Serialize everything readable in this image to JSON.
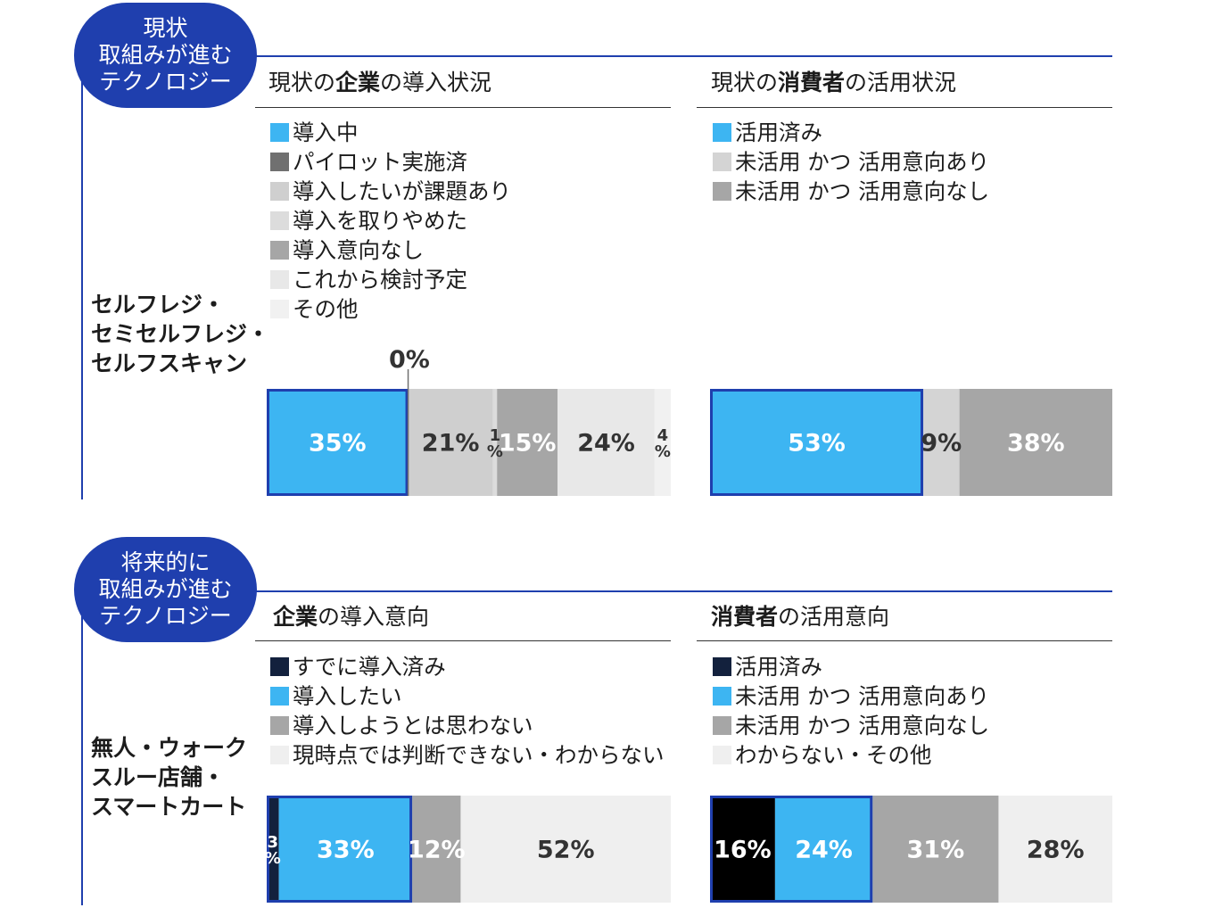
{
  "sections": [
    {
      "badge": [
        "現状",
        "取組みが進む",
        "テクノロジー"
      ],
      "row_label": [
        "セルフレジ・",
        "セミセルフレジ・",
        "セルフスキャン"
      ],
      "panels": [
        {
          "title_parts": [
            {
              "text": "現状の",
              "bold": false
            },
            {
              "text": "企業",
              "bold": true
            },
            {
              "text": "の導入状況",
              "bold": false
            }
          ],
          "legend": [
            {
              "label": "導入中",
              "color": "#3db5f2"
            },
            {
              "label": "パイロット実施済",
              "color": "#707070"
            },
            {
              "label": "導入したいが課題あり",
              "color": "#cfcfcf"
            },
            {
              "label": "導入を取りやめた",
              "color": "#dcdcdc"
            },
            {
              "label": "導入意向なし",
              "color": "#a6a6a6"
            },
            {
              "label": "これから検討予定",
              "color": "#e8e8e8"
            },
            {
              "label": "その他",
              "color": "#f1f1f1"
            }
          ]
        },
        {
          "title_parts": [
            {
              "text": "現状の",
              "bold": false
            },
            {
              "text": "消費者",
              "bold": true
            },
            {
              "text": "の活用状況",
              "bold": false
            }
          ],
          "legend": [
            {
              "label": "活用済み",
              "color": "#3db5f2"
            },
            {
              "label": "未活用 かつ 活用意向あり",
              "color": "#d4d4d4"
            },
            {
              "label": "未活用 かつ 活用意向なし",
              "color": "#a6a6a6"
            }
          ]
        }
      ]
    },
    {
      "badge": [
        "将来的に",
        "取組みが進む",
        "テクノロジー"
      ],
      "row_label": [
        "無人・ウォーク",
        "スルー店舗・",
        "スマートカート"
      ],
      "panels": [
        {
          "title_parts": [
            {
              "text": "企業",
              "bold": true
            },
            {
              "text": "の導入意向",
              "bold": false
            }
          ],
          "legend": [
            {
              "label": "すでに導入済み",
              "color": "#13213d"
            },
            {
              "label": "導入したい",
              "color": "#3db5f2"
            },
            {
              "label": "導入しようとは思わない",
              "color": "#a6a6a6"
            },
            {
              "label": "現時点では判断できない・わからない",
              "color": "#efefef"
            }
          ]
        },
        {
          "title_parts": [
            {
              "text": "消費者",
              "bold": true
            },
            {
              "text": "の活用意向",
              "bold": false
            }
          ],
          "legend": [
            {
              "label": "活用済み",
              "color": "#13213d"
            },
            {
              "label": "未活用 かつ 活用意向あり",
              "color": "#3db5f2"
            },
            {
              "label": "未活用 かつ 活用意向なし",
              "color": "#a6a6a6"
            },
            {
              "label": "わからない・その他",
              "color": "#efefef"
            }
          ]
        }
      ]
    }
  ],
  "chart_data": [
    {
      "type": "bar",
      "stacked": "100%",
      "title": "現状の企業の導入状況",
      "categories": [
        "セルフレジ・セミセルフレジ・セルフスキャン"
      ],
      "series": [
        {
          "name": "導入中",
          "values": [
            35
          ],
          "label": "35%",
          "color": "#3db5f2",
          "text_color": "#ffffff",
          "highlight": true
        },
        {
          "name": "パイロット実施済",
          "values": [
            0
          ],
          "label": "0%",
          "color": "#707070",
          "text_color": "#333333"
        },
        {
          "name": "導入したいが課題あり",
          "values": [
            21
          ],
          "label": "21%",
          "color": "#cfcfcf",
          "text_color": "#333333"
        },
        {
          "name": "導入を取りやめた",
          "values": [
            1
          ],
          "label": "1%",
          "color": "#dcdcdc",
          "text_color": "#333333"
        },
        {
          "name": "導入意向なし",
          "values": [
            15
          ],
          "label": "15%",
          "color": "#a6a6a6",
          "text_color": "#ffffff"
        },
        {
          "name": "これから検討予定",
          "values": [
            24
          ],
          "label": "24%",
          "color": "#e8e8e8",
          "text_color": "#333333"
        },
        {
          "name": "その他",
          "values": [
            4
          ],
          "label": "4%",
          "color": "#f1f1f1",
          "text_color": "#333333"
        }
      ]
    },
    {
      "type": "bar",
      "stacked": "100%",
      "title": "現状の消費者の活用状況",
      "categories": [
        "セルフレジ・セミセルフレジ・セルフスキャン"
      ],
      "series": [
        {
          "name": "活用済み",
          "values": [
            53
          ],
          "label": "53%",
          "color": "#3db5f2",
          "text_color": "#ffffff",
          "highlight": true
        },
        {
          "name": "未活用 かつ 活用意向あり",
          "values": [
            9
          ],
          "label": "9%",
          "color": "#d4d4d4",
          "text_color": "#333333"
        },
        {
          "name": "未活用 かつ 活用意向なし",
          "values": [
            38
          ],
          "label": "38%",
          "color": "#a6a6a6",
          "text_color": "#ffffff"
        }
      ]
    },
    {
      "type": "bar",
      "stacked": "100%",
      "title": "企業の導入意向",
      "categories": [
        "無人・ウォークスルー店舗・スマートカート"
      ],
      "series": [
        {
          "name": "すでに導入済み",
          "values": [
            3
          ],
          "label": "3%",
          "color": "#13213d",
          "text_color": "#ffffff",
          "highlight": true
        },
        {
          "name": "導入したい",
          "values": [
            33
          ],
          "label": "33%",
          "color": "#3db5f2",
          "text_color": "#ffffff",
          "highlight": true
        },
        {
          "name": "導入しようとは思わない",
          "values": [
            12
          ],
          "label": "12%",
          "color": "#a6a6a6",
          "text_color": "#ffffff"
        },
        {
          "name": "現時点では判断できない・わからない",
          "values": [
            52
          ],
          "label": "52%",
          "color": "#efefef",
          "text_color": "#333333"
        }
      ]
    },
    {
      "type": "bar",
      "stacked": "100%",
      "title": "消費者の活用意向",
      "categories": [
        "無人・ウォークスルー店舗・スマートカート"
      ],
      "series": [
        {
          "name": "活用済み",
          "values": [
            16
          ],
          "label": "16%",
          "color": "#000000",
          "text_color": "#ffffff",
          "highlight": true
        },
        {
          "name": "未活用 かつ 活用意向あり",
          "values": [
            24
          ],
          "label": "24%",
          "color": "#3db5f2",
          "text_color": "#ffffff",
          "highlight": true
        },
        {
          "name": "未活用 かつ 活用意向なし",
          "values": [
            31
          ],
          "label": "31%",
          "color": "#a6a6a6",
          "text_color": "#ffffff"
        },
        {
          "name": "わからない・その他",
          "values": [
            28
          ],
          "label": "28%",
          "color": "#efefef",
          "text_color": "#333333"
        }
      ]
    }
  ]
}
